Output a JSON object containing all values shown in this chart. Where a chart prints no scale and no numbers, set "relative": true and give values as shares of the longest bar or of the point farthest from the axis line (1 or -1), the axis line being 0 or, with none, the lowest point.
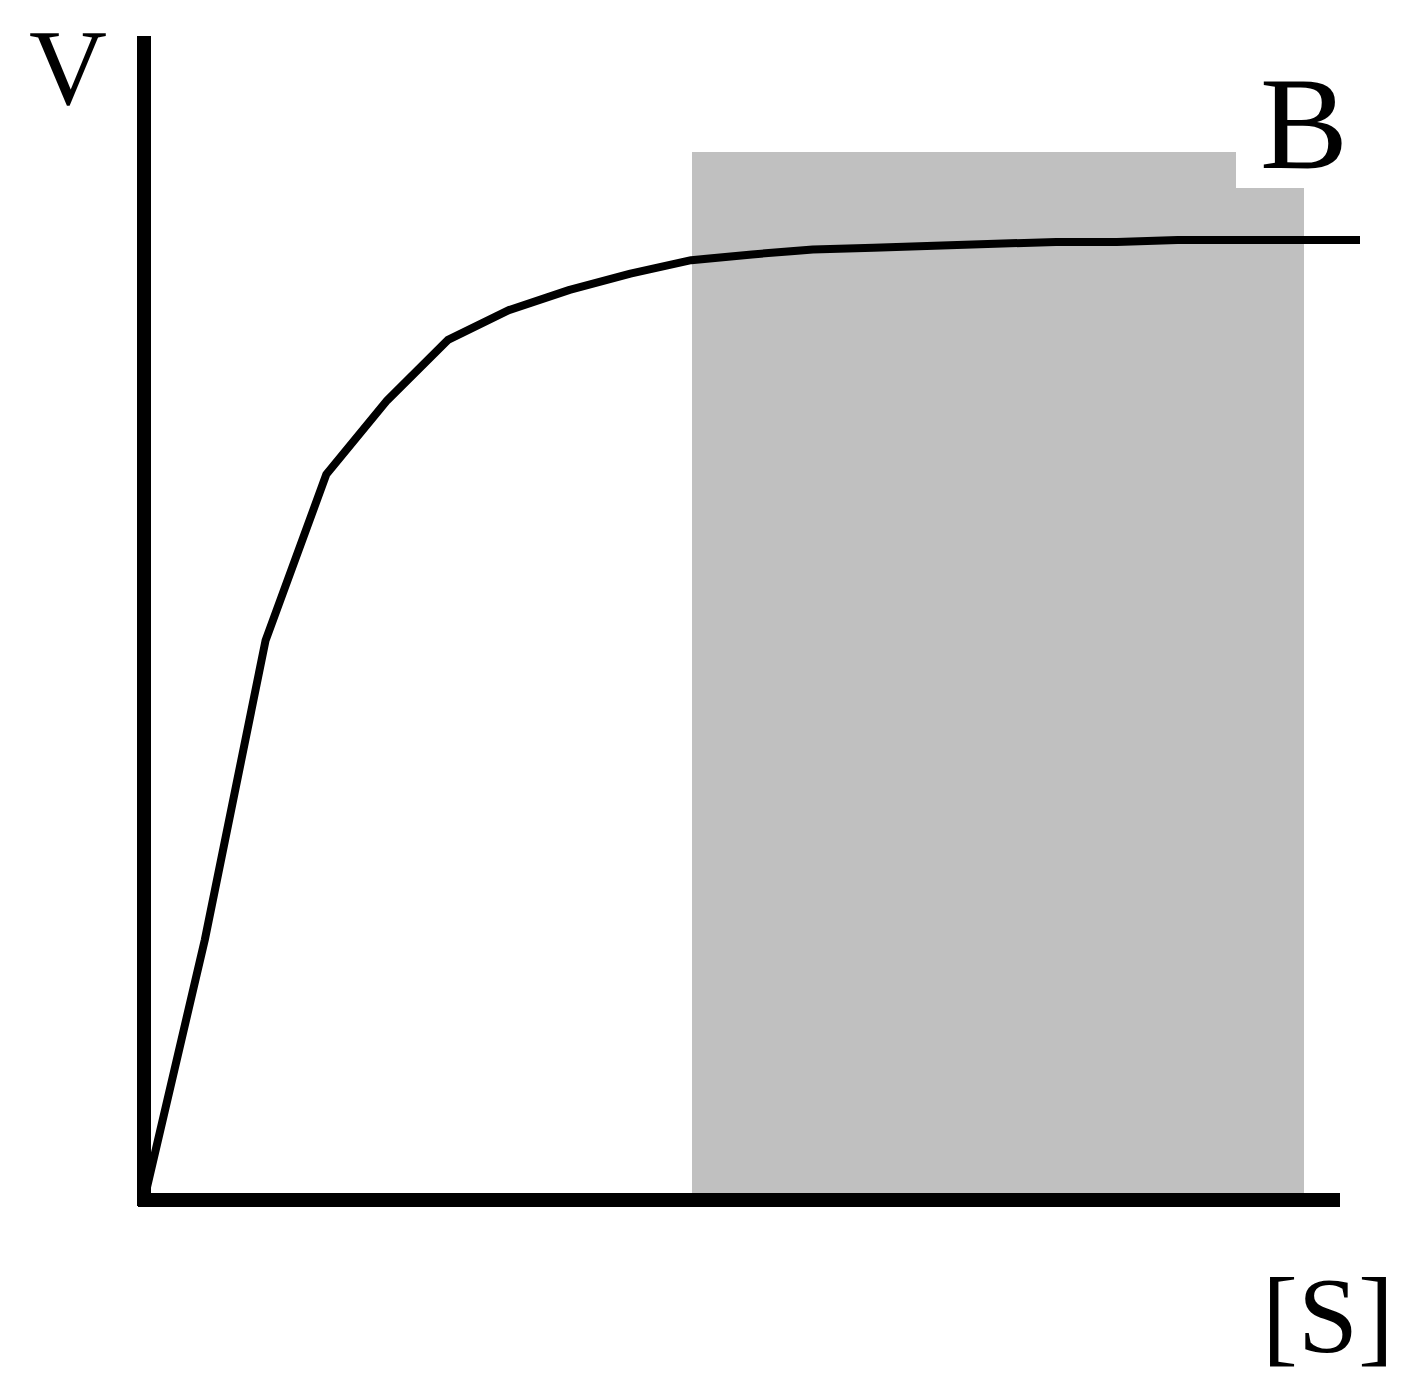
{
  "chart_data": {
    "type": "line",
    "relative": true,
    "xlabel": "[S]",
    "ylabel": "V",
    "categories": [
      null,
      null,
      null,
      null,
      null,
      null,
      null,
      null,
      null,
      null,
      null,
      null,
      null,
      null,
      null,
      null,
      null,
      null,
      null,
      null,
      null
    ],
    "series": [
      {
        "color": "#000000",
        "values": [
          0,
          0.271,
          0.583,
          0.756,
          0.833,
          0.896,
          0.927,
          0.948,
          0.965,
          0.979,
          0.985,
          0.99,
          0.992,
          0.994,
          0.996,
          0.998,
          0.998,
          1,
          1,
          1,
          1
        ]
      }
    ],
    "annotations": [
      "B"
    ]
  }
}
